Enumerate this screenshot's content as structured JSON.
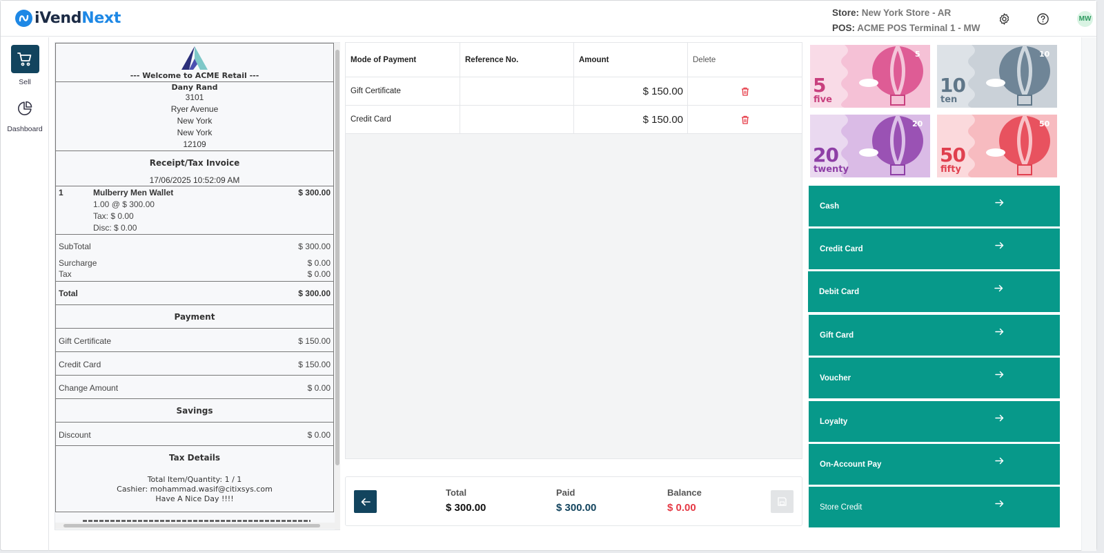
{
  "header": {
    "logo_part1": "iVend",
    "logo_part2": "Next",
    "store_label": "Store:",
    "store_value": "New York Store - AR",
    "pos_label": "POS:",
    "pos_value": "ACME POS Terminal 1 - MW",
    "user_initials": "MW",
    "icons": [
      "settings-gear-icon",
      "help-question-icon"
    ]
  },
  "nav": {
    "items": [
      {
        "label": "Sell",
        "icon": "cart-icon",
        "active": true
      },
      {
        "label": "Dashboard",
        "icon": "pie-chart-icon",
        "active": false
      }
    ]
  },
  "receipt": {
    "welcome": "--- Welcome to ACME Retail ---",
    "customer": "Dany Rand",
    "address": [
      "3101",
      "Ryer Avenue",
      "New York",
      "New York",
      "12109"
    ],
    "title": "Receipt/Tax Invoice",
    "datetime": "17/06/2025 10:52:09 AM",
    "item": {
      "qty": "1",
      "name": "Mulberry Men Wallet",
      "total": "$ 300.00",
      "detail_1": "1.00 @ $ 300.00",
      "detail_2": "Tax: $ 0.00",
      "detail_3": "Disc: $ 0.00"
    },
    "subtotal_label": "SubTotal",
    "subtotal_value": "$ 300.00",
    "surcharge_label": "Surcharge",
    "surcharge_value": "$ 0.00",
    "tax_label": "Tax",
    "tax_value": "$ 0.00",
    "total_label": "Total",
    "total_value": "$ 300.00",
    "payment_heading": "Payment",
    "payments": [
      {
        "label": "Gift Certificate",
        "value": "$ 150.00"
      },
      {
        "label": "Credit Card",
        "value": "$ 150.00"
      }
    ],
    "change_label": "Change Amount",
    "change_value": "$ 0.00",
    "savings_heading": "Savings",
    "discount_label": "Discount",
    "discount_value": "$ 0.00",
    "taxdetails_heading": "Tax Details",
    "footer_1": "Total Item/Quantity: 1 / 1",
    "footer_2": "Cashier: mohammad.wasif@citixsys.com",
    "footer_3": "Have A Nice Day !!!!"
  },
  "payments_table": {
    "headers": [
      "Mode of Payment",
      "Reference No.",
      "Amount",
      "Delete"
    ],
    "rows": [
      {
        "mode": "Gift Certificate",
        "reference": "",
        "amount": "$ 150.00"
      },
      {
        "mode": "Credit Card",
        "reference": "",
        "amount": "$ 150.00"
      }
    ]
  },
  "totals": {
    "total_label": "Total",
    "total_value": "$ 300.00",
    "paid_label": "Paid",
    "paid_value": "$ 300.00",
    "balance_label": "Balance",
    "balance_value": "$ 0.00"
  },
  "notes": [
    {
      "num": "5",
      "word": "five",
      "small": "5",
      "color": "#c8407e",
      "bg": "#f9dbe7"
    },
    {
      "num": "10",
      "word": "ten",
      "small": "10",
      "color": "#5f7688",
      "bg": "#dde2e7"
    },
    {
      "num": "20",
      "word": "twenty",
      "small": "20",
      "color": "#8e3fa6",
      "bg": "#ead9f0"
    },
    {
      "num": "50",
      "word": "fifty",
      "small": "50",
      "color": "#e0404f",
      "bg": "#fbd9dc"
    }
  ],
  "tenders": [
    "Cash",
    "Credit Card",
    "Debit Card",
    "Gift Card",
    "Voucher",
    "Loyalty",
    "On-Account Pay",
    "Store Credit"
  ],
  "colors": {
    "teal": "#07998a",
    "navy": "#12445e",
    "brand_blue": "#1e88e5",
    "balance_red": "#e53945",
    "delete_red": "#e53945"
  }
}
